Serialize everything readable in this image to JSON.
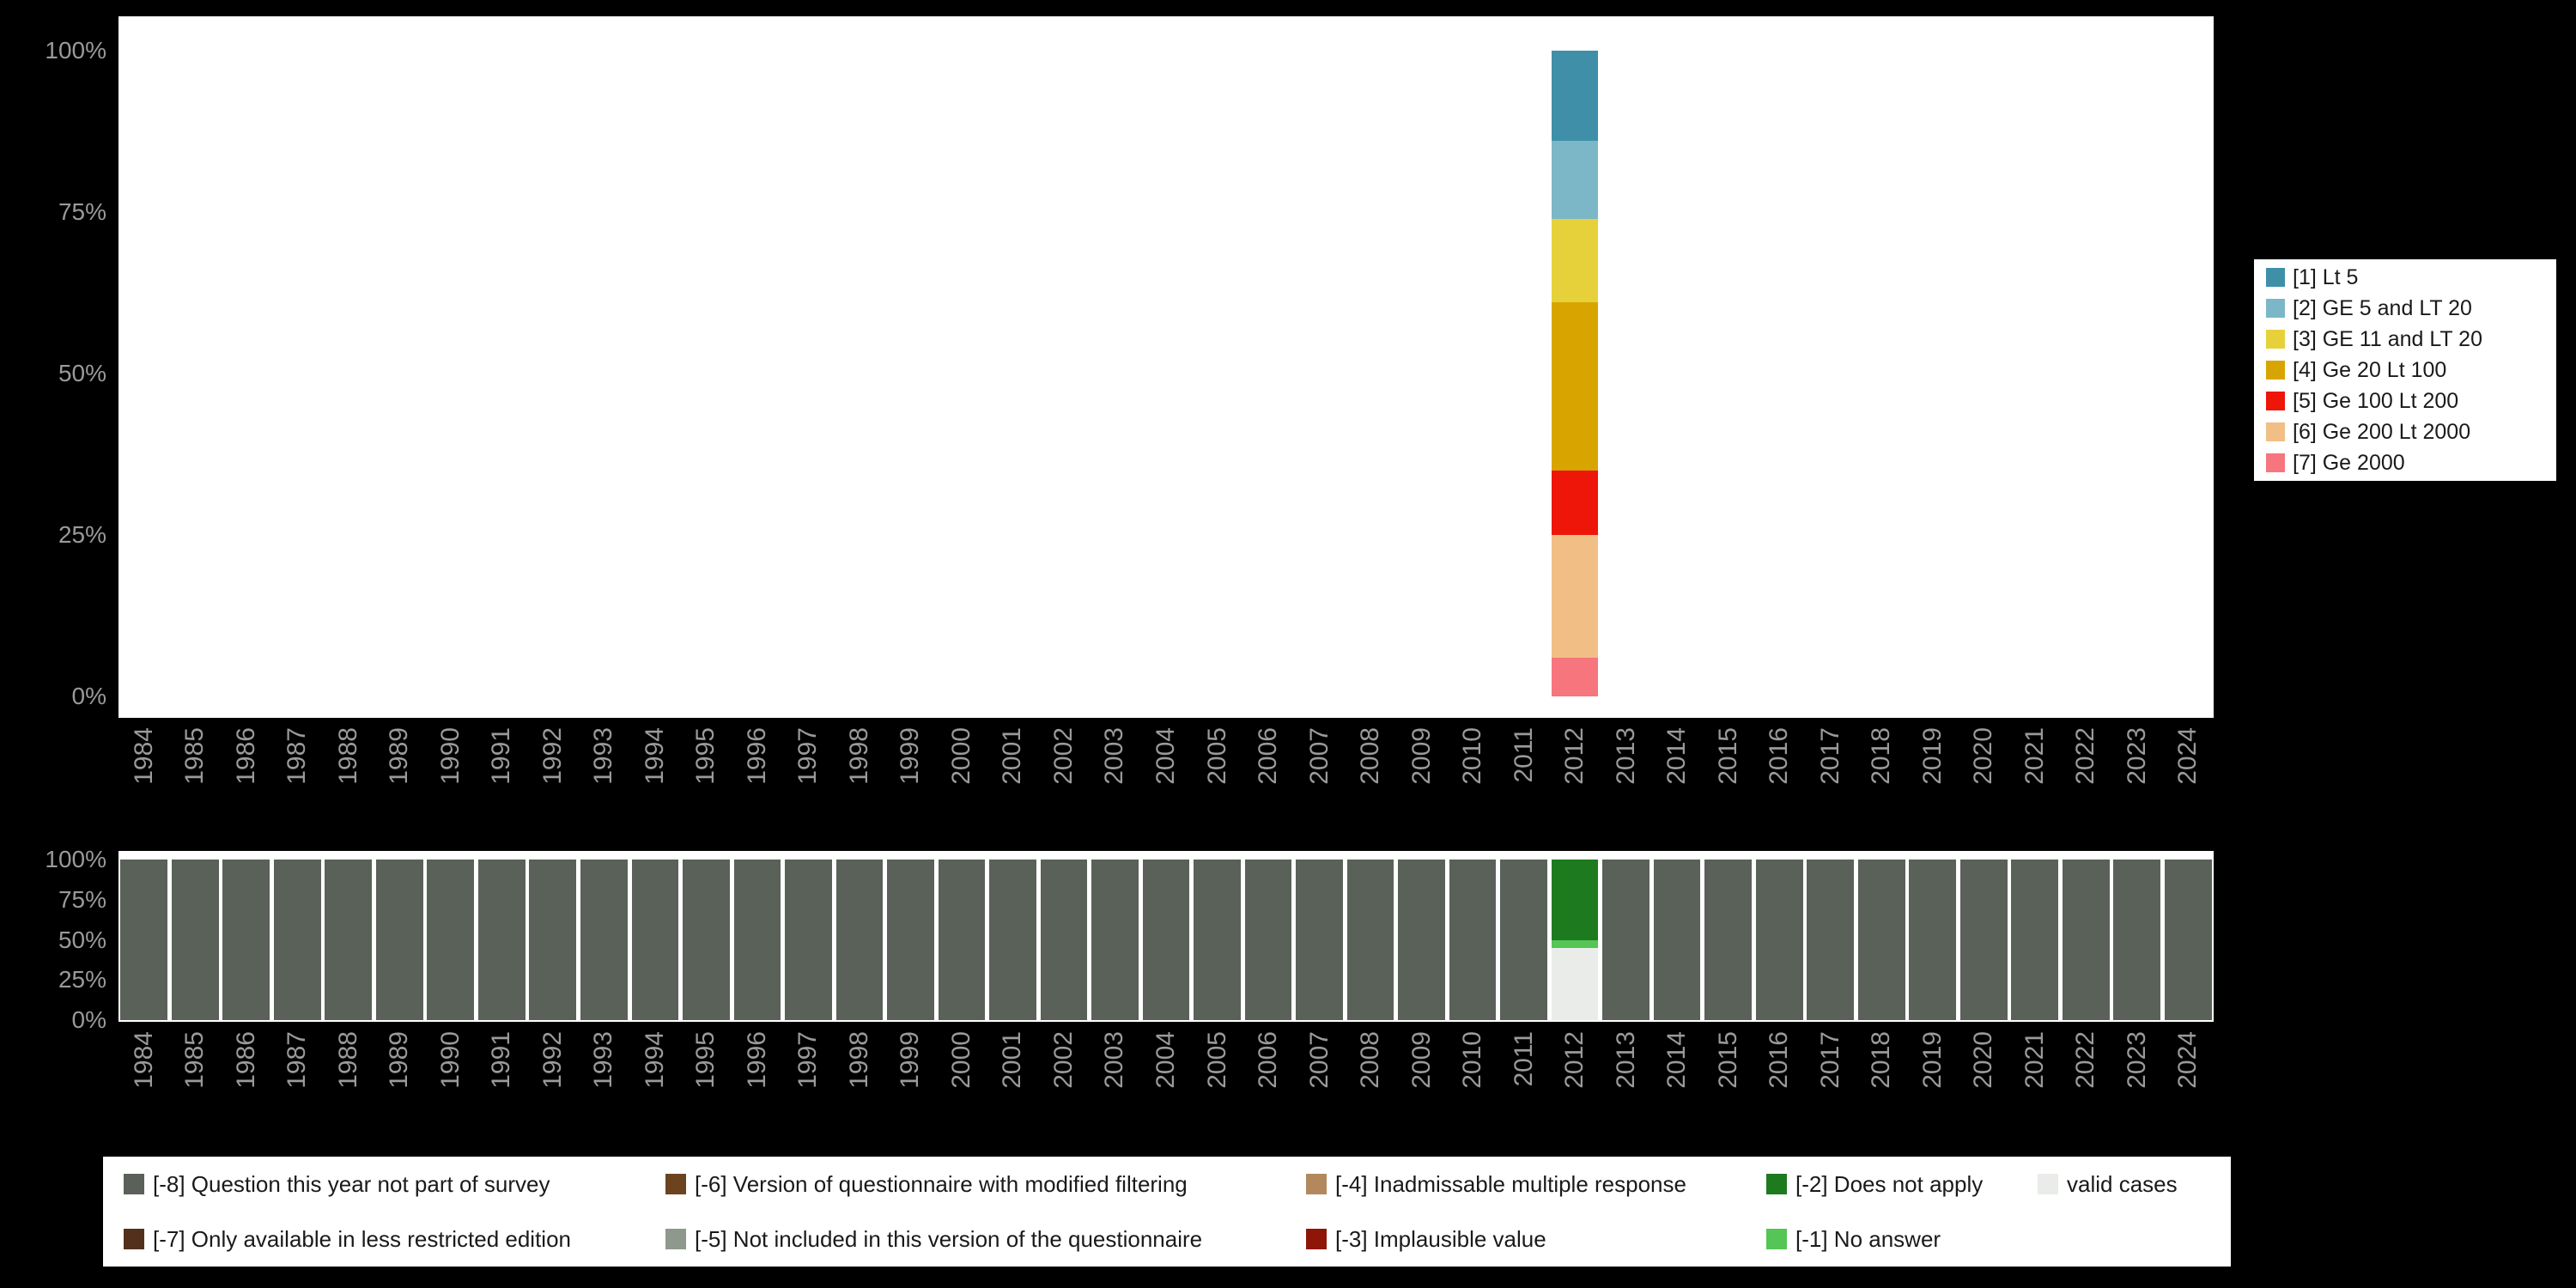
{
  "page": {
    "background": "#000000",
    "panel_background": "#ffffff",
    "axis_text_color": "#9a9a9a",
    "legend_text_color": "#1a1a1a"
  },
  "chart_data": [
    {
      "id": "category-distribution",
      "type": "bar",
      "stacked": true,
      "stack_direction": "top-to-bottom",
      "title": "",
      "xlabel": "",
      "ylabel": "",
      "ylim": [
        0,
        100
      ],
      "grid": false,
      "legend_position": "right",
      "categories": [
        "1984",
        "1985",
        "1986",
        "1987",
        "1988",
        "1989",
        "1990",
        "1991",
        "1992",
        "1993",
        "1994",
        "1995",
        "1996",
        "1997",
        "1998",
        "1999",
        "2000",
        "2001",
        "2002",
        "2003",
        "2004",
        "2005",
        "2006",
        "2007",
        "2008",
        "2009",
        "2010",
        "2011",
        "2012",
        "2013",
        "2014",
        "2015",
        "2016",
        "2017",
        "2018",
        "2019",
        "2020",
        "2021",
        "2022",
        "2023",
        "2024"
      ],
      "y_ticks": [
        "100%",
        "75%",
        "50%",
        "25%",
        "0%"
      ],
      "series": [
        {
          "name": "[1] Lt 5",
          "color": "#3f8fa9",
          "default": 0,
          "overrides": {
            "2012": 14
          }
        },
        {
          "name": "[2] GE 5 and LT 20",
          "color": "#7cb7c7",
          "default": 0,
          "overrides": {
            "2012": 12
          }
        },
        {
          "name": "[3] GE 11 and LT 20",
          "color": "#e7d13b",
          "default": 0,
          "overrides": {
            "2012": 13
          }
        },
        {
          "name": "[4] Ge 20 Lt 100",
          "color": "#d8a500",
          "default": 0,
          "overrides": {
            "2012": 26
          }
        },
        {
          "name": "[5] Ge 100 Lt 200",
          "color": "#ee1509",
          "default": 0,
          "overrides": {
            "2012": 10
          }
        },
        {
          "name": "[6] Ge 200 Lt 2000",
          "color": "#f1bf85",
          "default": 0,
          "overrides": {
            "2012": 19
          }
        },
        {
          "name": "[7] Ge 2000",
          "color": "#f7757c",
          "default": 0,
          "overrides": {
            "2012": 6
          }
        }
      ]
    },
    {
      "id": "missing-values",
      "type": "bar",
      "stacked": true,
      "stack_direction": "top-to-bottom",
      "title": "",
      "xlabel": "",
      "ylabel": "",
      "ylim": [
        0,
        100
      ],
      "grid": false,
      "legend_position": "bottom",
      "categories": [
        "1984",
        "1985",
        "1986",
        "1987",
        "1988",
        "1989",
        "1990",
        "1991",
        "1992",
        "1993",
        "1994",
        "1995",
        "1996",
        "1997",
        "1998",
        "1999",
        "2000",
        "2001",
        "2002",
        "2003",
        "2004",
        "2005",
        "2006",
        "2007",
        "2008",
        "2009",
        "2010",
        "2011",
        "2012",
        "2013",
        "2014",
        "2015",
        "2016",
        "2017",
        "2018",
        "2019",
        "2020",
        "2021",
        "2022",
        "2023",
        "2024"
      ],
      "y_ticks": [
        "100%",
        "75%",
        "50%",
        "25%",
        "0%"
      ],
      "series": [
        {
          "name": "[-8] Question this year not part of survey",
          "color": "#5a6159",
          "default": 100,
          "overrides": {
            "2012": 0
          }
        },
        {
          "name": "[-2] Does not apply",
          "color": "#1e7a1e",
          "default": 0,
          "overrides": {
            "2012": 50
          }
        },
        {
          "name": "[-1] No answer",
          "color": "#55c555",
          "default": 0,
          "overrides": {
            "2012": 5
          }
        },
        {
          "name": "valid cases",
          "color": "#e9ece8",
          "default": 0,
          "overrides": {
            "2012": 45
          }
        }
      ],
      "legend_items": [
        {
          "name": "[-8] Question this year not part of survey",
          "color": "#5a6159"
        },
        {
          "name": "[-7] Only available in less restricted edition",
          "color": "#53301b"
        },
        {
          "name": "[-6] Version of questionnaire with modified filtering",
          "color": "#6b431f"
        },
        {
          "name": "[-5] Not included in this version of the questionnaire",
          "color": "#8e988c"
        },
        {
          "name": "[-4] Inadmissable multiple response",
          "color": "#b3885c"
        },
        {
          "name": "[-3] Implausible value",
          "color": "#8f1508"
        },
        {
          "name": "[-2] Does not apply",
          "color": "#1e7a1e"
        },
        {
          "name": "[-1] No answer",
          "color": "#55c555"
        },
        {
          "name": "valid cases",
          "color": "#e9ece8"
        }
      ]
    }
  ]
}
